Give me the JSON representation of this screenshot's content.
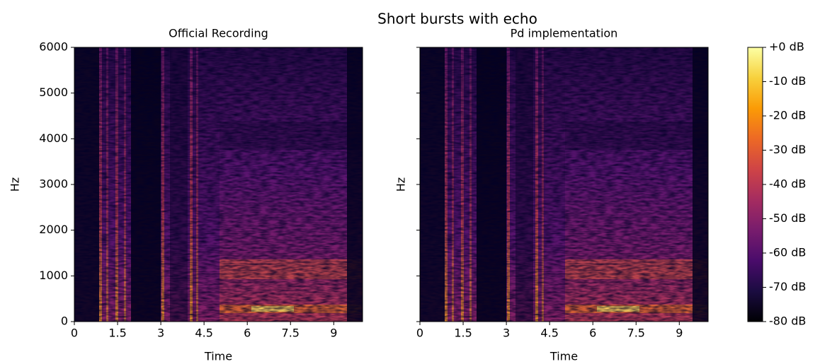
{
  "title": "Short bursts with echo",
  "chart_data": [
    {
      "type": "spectrogram",
      "title": "Official Recording",
      "xlabel": "Time",
      "ylabel": "Hz",
      "xlim": [
        0,
        10
      ],
      "xticks": [
        0,
        1.5,
        3,
        4.5,
        6,
        7.5,
        9
      ],
      "ylim": [
        0,
        6000
      ],
      "yticks": [
        0,
        1000,
        2000,
        3000,
        4000,
        5000,
        6000
      ],
      "ytick_labels": true,
      "colormap": "inferno"
    },
    {
      "type": "spectrogram",
      "title": "Pd implementation",
      "xlabel": "Time",
      "ylabel": "Hz",
      "xlim": [
        0,
        10
      ],
      "xticks": [
        0,
        1.5,
        3,
        4.5,
        6,
        7.5,
        9
      ],
      "ylim": [
        0,
        6000
      ],
      "yticks": [
        0,
        1000,
        2000,
        3000,
        4000,
        5000,
        6000
      ],
      "ytick_labels": false,
      "colormap": "inferno"
    }
  ],
  "colorbar": {
    "lim": [
      -80,
      0
    ],
    "ticks": [
      {
        "value": 0,
        "label": "+0 dB"
      },
      {
        "value": -10,
        "label": "-10 dB"
      },
      {
        "value": -20,
        "label": "-20 dB"
      },
      {
        "value": -30,
        "label": "-30 dB"
      },
      {
        "value": -40,
        "label": "-40 dB"
      },
      {
        "value": -50,
        "label": "-50 dB"
      },
      {
        "value": -60,
        "label": "-60 dB"
      },
      {
        "value": -70,
        "label": "-70 dB"
      },
      {
        "value": -80,
        "label": "-80 dB"
      }
    ]
  }
}
